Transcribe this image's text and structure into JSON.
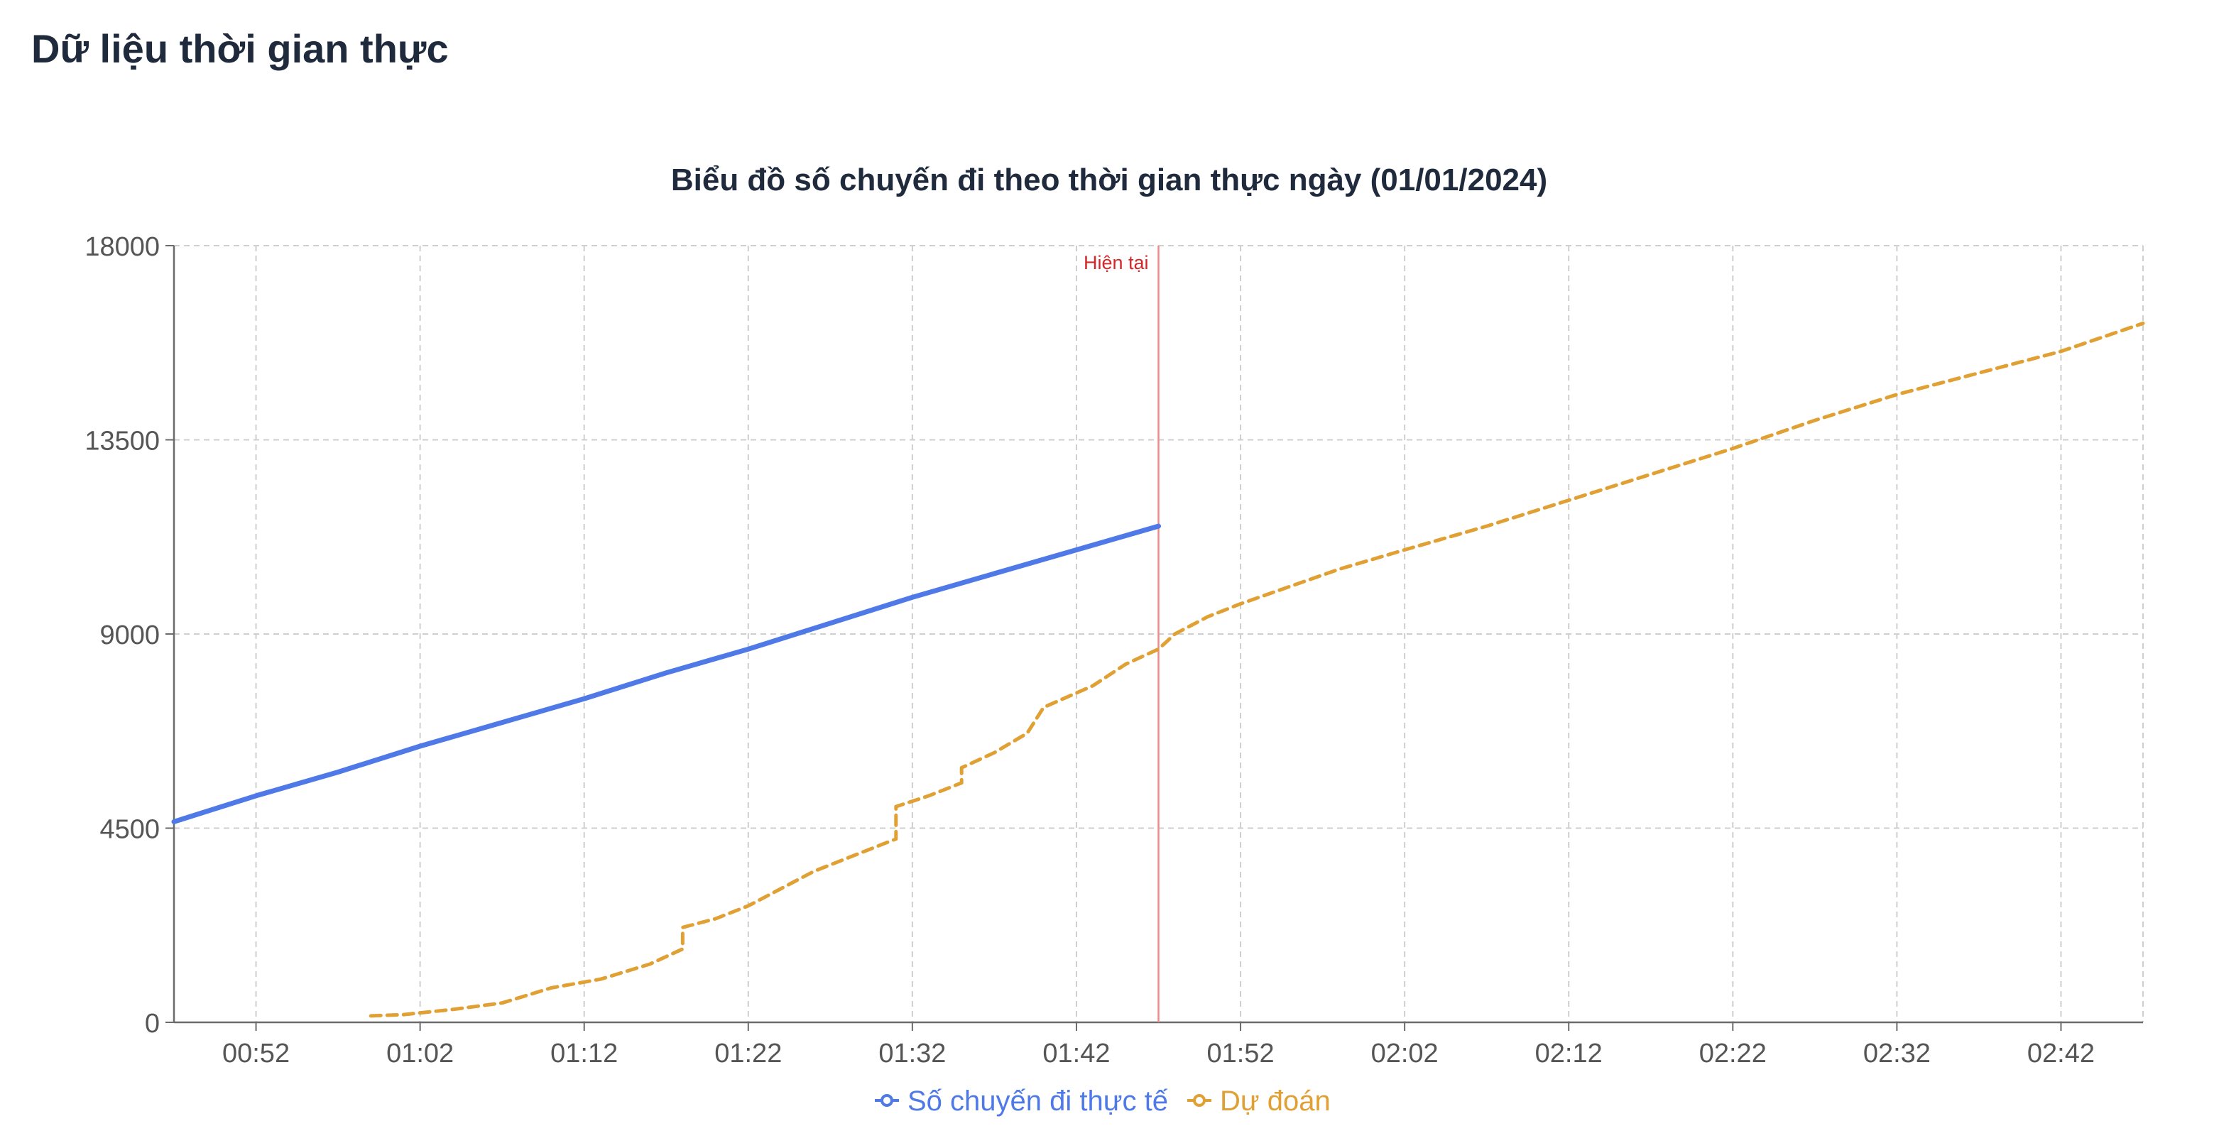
{
  "header": {
    "title": "Dữ liệu thời gian thực"
  },
  "colors": {
    "actual": "#4e79e6",
    "forecast": "#e0a033",
    "now_line": "#f08a8a",
    "now_label": "#d62728",
    "grid": "#cfcfcf",
    "axis": "#6b6b6b",
    "tick_text": "#555555",
    "title_text": "#1f2a3c"
  },
  "chart_data": {
    "type": "line",
    "title": "Biểu đồ số chuyến đi theo thời gian thực ngày (01/01/2024)",
    "xlabel": "",
    "ylabel": "",
    "x_axis_unit": "time (HH:MM)",
    "xlim": [
      "00:47",
      "02:47"
    ],
    "ylim": [
      0,
      18000
    ],
    "x_ticks": [
      "00:52",
      "01:02",
      "01:12",
      "01:22",
      "01:32",
      "01:42",
      "01:52",
      "02:02",
      "02:12",
      "02:22",
      "02:32",
      "02:42"
    ],
    "y_ticks": [
      0,
      4500,
      9000,
      13500,
      18000
    ],
    "grid": true,
    "legend_position": "bottom-center",
    "now_marker": {
      "x": "01:47",
      "label": "Hiện tại"
    },
    "series": [
      {
        "name": "Số chuyến đi thực tế",
        "style": "solid",
        "points": [
          [
            "00:47",
            4650
          ],
          [
            "00:52",
            5250
          ],
          [
            "00:57",
            5800
          ],
          [
            "01:02",
            6400
          ],
          [
            "01:07",
            6950
          ],
          [
            "01:12",
            7500
          ],
          [
            "01:17",
            8100
          ],
          [
            "01:22",
            8650
          ],
          [
            "01:27",
            9250
          ],
          [
            "01:32",
            9850
          ],
          [
            "01:37",
            10400
          ],
          [
            "01:42",
            10950
          ],
          [
            "01:47",
            11500
          ]
        ]
      },
      {
        "name": "Dự đoán",
        "style": "dashed",
        "points": [
          [
            "00:59",
            150
          ],
          [
            "01:01",
            180
          ],
          [
            "01:04",
            300
          ],
          [
            "01:07",
            450
          ],
          [
            "01:10",
            800
          ],
          [
            "01:13",
            1000
          ],
          [
            "01:16",
            1350
          ],
          [
            "01:18",
            1700
          ],
          [
            "01:18",
            2200
          ],
          [
            "01:20",
            2400
          ],
          [
            "01:22",
            2700
          ],
          [
            "01:24",
            3100
          ],
          [
            "01:26",
            3500
          ],
          [
            "01:29",
            3950
          ],
          [
            "01:31",
            4250
          ],
          [
            "01:31",
            5000
          ],
          [
            "01:33",
            5250
          ],
          [
            "01:35",
            5550
          ],
          [
            "01:35",
            5900
          ],
          [
            "01:37",
            6250
          ],
          [
            "01:39",
            6700
          ],
          [
            "01:40",
            7300
          ],
          [
            "01:43",
            7800
          ],
          [
            "01:45",
            8300
          ],
          [
            "01:47",
            8650
          ],
          [
            "01:48",
            9000
          ],
          [
            "01:50",
            9400
          ],
          [
            "01:52",
            9700
          ],
          [
            "01:55",
            10100
          ],
          [
            "01:58",
            10500
          ],
          [
            "02:02",
            10950
          ],
          [
            "02:07",
            11500
          ],
          [
            "02:12",
            12100
          ],
          [
            "02:17",
            12700
          ],
          [
            "02:22",
            13300
          ],
          [
            "02:27",
            13950
          ],
          [
            "02:32",
            14550
          ],
          [
            "02:37",
            15050
          ],
          [
            "02:42",
            15550
          ],
          [
            "02:47",
            16200
          ]
        ]
      }
    ]
  }
}
